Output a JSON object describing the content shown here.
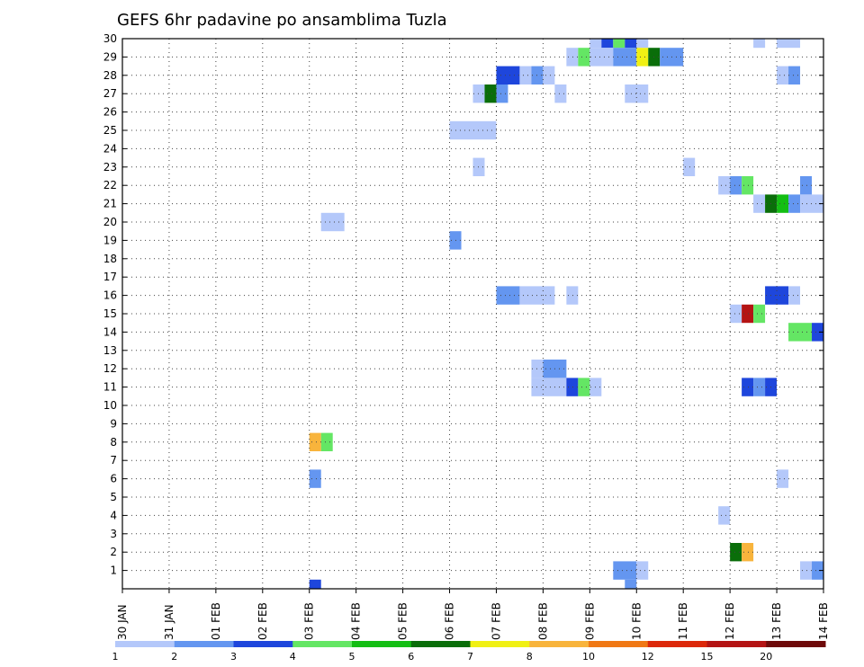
{
  "chart_data": {
    "type": "heatmap",
    "title": "GEFS 6hr padavine po ansamblima Tuzla",
    "x_tick_labels": [
      "30 JAN",
      "31 JAN",
      "01 FEB",
      "02 FEB",
      "03 FEB",
      "04 FEB",
      "05 FEB",
      "06 FEB",
      "07 FEB",
      "08 FEB",
      "09 FEB",
      "10 FEB",
      "11 FEB",
      "12 FEB",
      "13 FEB",
      "14 FEB"
    ],
    "y_tick_labels": [
      "1",
      "2",
      "3",
      "4",
      "5",
      "6",
      "7",
      "8",
      "9",
      "10",
      "11",
      "12",
      "13",
      "14",
      "15",
      "16",
      "17",
      "18",
      "19",
      "20",
      "21",
      "22",
      "23",
      "24",
      "25",
      "26",
      "27",
      "28",
      "29",
      "30"
    ],
    "x_range_days": [
      0,
      15
    ],
    "y_range": [
      0,
      30
    ],
    "grid": true,
    "colorbar": {
      "colors": [
        "#b4c8fa",
        "#6496f0",
        "#1e46dc",
        "#64e664",
        "#14be14",
        "#0a6e0a",
        "#f0f014",
        "#f8b43c",
        "#f07814",
        "#dc280a",
        "#b41414",
        "#6e0a0a"
      ],
      "labels": [
        "1",
        "2",
        "3",
        "4",
        "5",
        "6",
        "7",
        "8",
        "10",
        "12",
        "15",
        "20"
      ]
    },
    "cells": [
      {
        "day": 10.0,
        "member": 30,
        "n": 1,
        "c": 0
      },
      {
        "day": 10.25,
        "member": 30,
        "n": 1,
        "c": 2
      },
      {
        "day": 10.5,
        "member": 30,
        "n": 1,
        "c": 3
      },
      {
        "day": 10.75,
        "member": 30,
        "n": 1,
        "c": 2
      },
      {
        "day": 11.0,
        "member": 30,
        "n": 1,
        "c": 0
      },
      {
        "day": 13.5,
        "member": 30,
        "n": 1,
        "c": 0
      },
      {
        "day": 14.0,
        "member": 30,
        "n": 2,
        "c": 0
      },
      {
        "day": 9.5,
        "member": 29,
        "n": 1,
        "c": 0
      },
      {
        "day": 9.75,
        "member": 29,
        "n": 1,
        "c": 3
      },
      {
        "day": 10.0,
        "member": 29,
        "n": 2,
        "c": 0
      },
      {
        "day": 10.5,
        "member": 29,
        "n": 2,
        "c": 1
      },
      {
        "day": 11.0,
        "member": 29,
        "n": 1,
        "c": 6
      },
      {
        "day": 11.25,
        "member": 29,
        "n": 1,
        "c": 5
      },
      {
        "day": 11.5,
        "member": 29,
        "n": 2,
        "c": 1
      },
      {
        "day": 8.0,
        "member": 28,
        "n": 2,
        "c": 2
      },
      {
        "day": 8.5,
        "member": 28,
        "n": 1,
        "c": 0
      },
      {
        "day": 8.75,
        "member": 28,
        "n": 1,
        "c": 1
      },
      {
        "day": 9.0,
        "member": 28,
        "n": 1,
        "c": 0
      },
      {
        "day": 14.0,
        "member": 28,
        "n": 1,
        "c": 0
      },
      {
        "day": 14.25,
        "member": 28,
        "n": 1,
        "c": 1
      },
      {
        "day": 7.5,
        "member": 27,
        "n": 1,
        "c": 0
      },
      {
        "day": 7.75,
        "member": 27,
        "n": 1,
        "c": 5
      },
      {
        "day": 8.0,
        "member": 27,
        "n": 1,
        "c": 1
      },
      {
        "day": 9.25,
        "member": 27,
        "n": 1,
        "c": 0
      },
      {
        "day": 10.75,
        "member": 27,
        "n": 2,
        "c": 0
      },
      {
        "day": 7.0,
        "member": 25,
        "n": 4,
        "c": 0
      },
      {
        "day": 7.5,
        "member": 23,
        "n": 1,
        "c": 0
      },
      {
        "day": 12.0,
        "member": 23,
        "n": 1,
        "c": 0
      },
      {
        "day": 12.75,
        "member": 22,
        "n": 1,
        "c": 0
      },
      {
        "day": 13.0,
        "member": 22,
        "n": 1,
        "c": 1
      },
      {
        "day": 13.25,
        "member": 22,
        "n": 1,
        "c": 3
      },
      {
        "day": 14.5,
        "member": 22,
        "n": 1,
        "c": 1
      },
      {
        "day": 13.5,
        "member": 21,
        "n": 1,
        "c": 0
      },
      {
        "day": 13.75,
        "member": 21,
        "n": 1,
        "c": 5
      },
      {
        "day": 14.0,
        "member": 21,
        "n": 1,
        "c": 4
      },
      {
        "day": 14.25,
        "member": 21,
        "n": 1,
        "c": 1
      },
      {
        "day": 14.5,
        "member": 21,
        "n": 2,
        "c": 0
      },
      {
        "day": 4.25,
        "member": 20,
        "n": 2,
        "c": 0
      },
      {
        "day": 7.0,
        "member": 19,
        "n": 1,
        "c": 1
      },
      {
        "day": 8.0,
        "member": 16,
        "n": 2,
        "c": 1
      },
      {
        "day": 8.5,
        "member": 16,
        "n": 3,
        "c": 0
      },
      {
        "day": 9.5,
        "member": 16,
        "n": 1,
        "c": 0
      },
      {
        "day": 13.75,
        "member": 16,
        "n": 2,
        "c": 2
      },
      {
        "day": 14.25,
        "member": 16,
        "n": 1,
        "c": 0
      },
      {
        "day": 13.0,
        "member": 15,
        "n": 1,
        "c": 0
      },
      {
        "day": 13.25,
        "member": 15,
        "n": 1,
        "c": 10
      },
      {
        "day": 13.5,
        "member": 15,
        "n": 1,
        "c": 3
      },
      {
        "day": 14.25,
        "member": 14,
        "n": 2,
        "c": 3
      },
      {
        "day": 14.75,
        "member": 14,
        "n": 1,
        "c": 2
      },
      {
        "day": 8.75,
        "member": 12,
        "n": 1,
        "c": 0
      },
      {
        "day": 9.0,
        "member": 12,
        "n": 2,
        "c": 1
      },
      {
        "day": 8.75,
        "member": 11,
        "n": 3,
        "c": 0
      },
      {
        "day": 9.5,
        "member": 11,
        "n": 1,
        "c": 2
      },
      {
        "day": 9.75,
        "member": 11,
        "n": 1,
        "c": 3
      },
      {
        "day": 10.0,
        "member": 11,
        "n": 1,
        "c": 0
      },
      {
        "day": 13.25,
        "member": 11,
        "n": 1,
        "c": 2
      },
      {
        "day": 13.5,
        "member": 11,
        "n": 1,
        "c": 1
      },
      {
        "day": 13.75,
        "member": 11,
        "n": 1,
        "c": 2
      },
      {
        "day": 4.0,
        "member": 8,
        "n": 1,
        "c": 7
      },
      {
        "day": 4.25,
        "member": 8,
        "n": 1,
        "c": 3
      },
      {
        "day": 4.0,
        "member": 6,
        "n": 1,
        "c": 1
      },
      {
        "day": 14.0,
        "member": 6,
        "n": 1,
        "c": 0
      },
      {
        "day": 12.75,
        "member": 4,
        "n": 1,
        "c": 0
      },
      {
        "day": 13.0,
        "member": 2,
        "n": 1,
        "c": 5
      },
      {
        "day": 13.25,
        "member": 2,
        "n": 1,
        "c": 7
      },
      {
        "day": 10.5,
        "member": 1,
        "n": 2,
        "c": 1
      },
      {
        "day": 11.0,
        "member": 1,
        "n": 1,
        "c": 0
      },
      {
        "day": 14.5,
        "member": 1,
        "n": 1,
        "c": 0
      },
      {
        "day": 14.75,
        "member": 1,
        "n": 1,
        "c": 1
      },
      {
        "day": 4.0,
        "member": 0,
        "n": 1,
        "c": 2
      },
      {
        "day": 10.75,
        "member": 0,
        "n": 1,
        "c": 1
      }
    ]
  }
}
